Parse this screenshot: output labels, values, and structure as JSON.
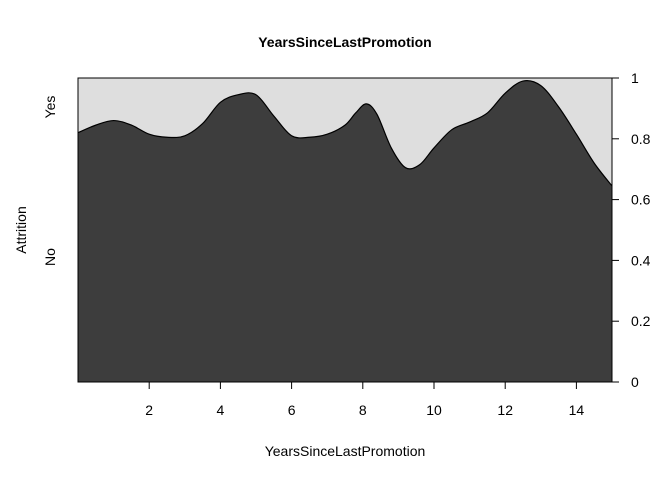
{
  "chart_data": {
    "type": "area",
    "subtype": "conditional-density (spineplot style)",
    "title": "YearsSinceLastPromotion",
    "xlabel": "YearsSinceLastPromotion",
    "ylabel": "Attrition",
    "categories_left": [
      "Yes",
      "No"
    ],
    "xlim": [
      0,
      15
    ],
    "ylim": [
      0,
      1
    ],
    "x_ticks": [
      "2",
      "4",
      "6",
      "8",
      "10",
      "12",
      "14"
    ],
    "y_ticks_right": [
      "0",
      "0.2",
      "0.4",
      "0.6",
      "0.8",
      "1"
    ],
    "colors": {
      "no": "#3d3d3d",
      "yes": "#dedede",
      "line": "#000000"
    },
    "boundary": {
      "x": [
        0,
        0.5,
        1.0,
        1.5,
        2.0,
        2.5,
        3.0,
        3.5,
        4.0,
        4.5,
        5.0,
        5.5,
        6.0,
        6.5,
        7.0,
        7.5,
        7.8,
        8.1,
        8.4,
        8.8,
        9.2,
        9.6,
        10.0,
        10.5,
        11.0,
        11.5,
        12.0,
        12.5,
        13.0,
        13.5,
        14.0,
        14.5,
        15.0
      ],
      "y": [
        0.82,
        0.845,
        0.86,
        0.845,
        0.815,
        0.805,
        0.81,
        0.85,
        0.92,
        0.945,
        0.945,
        0.875,
        0.81,
        0.805,
        0.815,
        0.845,
        0.885,
        0.915,
        0.88,
        0.77,
        0.705,
        0.715,
        0.77,
        0.83,
        0.855,
        0.885,
        0.95,
        0.99,
        0.975,
        0.905,
        0.815,
        0.72,
        0.645
      ]
    }
  }
}
